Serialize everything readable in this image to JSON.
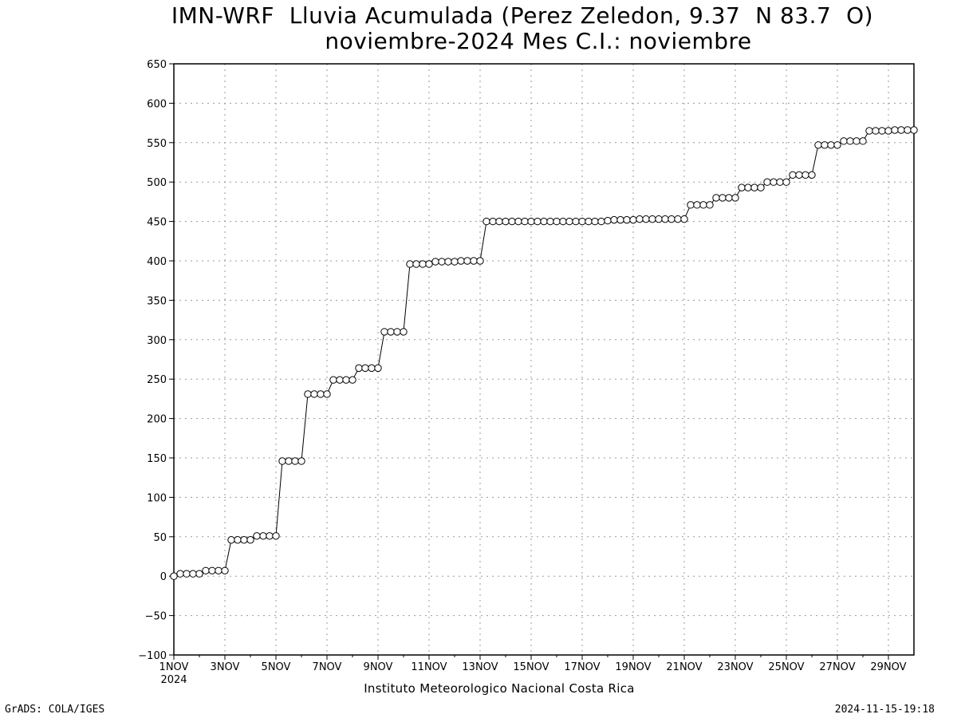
{
  "title_line1": "IMN-WRF  Lluvia Acumulada (Perez Zeledon, 9.37  N 83.7  O)",
  "title_line2": "noviembre-2024 Mes C.I.: noviembre",
  "footer": {
    "left": "GrADS: COLA/IGES",
    "right": "2024-11-15-19:18",
    "center": "Instituto Meteorologico Nacional Costa Rica"
  },
  "chart_data": {
    "type": "line",
    "title": "IMN-WRF  Lluvia Acumulada (Perez Zeledon, 9.37  N 83.7  O)",
    "subtitle": "noviembre-2024 Mes C.I.: noviembre",
    "xlabel": "",
    "ylabel": "",
    "x_unit": "days since 1NOV 2024 (0 = 1NOV 00h, step 0.25 day)",
    "xlim": [
      0,
      29
    ],
    "ylim": [
      -100,
      650
    ],
    "yticks": [
      -100,
      -50,
      0,
      50,
      100,
      150,
      200,
      250,
      300,
      350,
      400,
      450,
      500,
      550,
      600,
      650
    ],
    "xtick_labels": [
      {
        "x": 0,
        "label": "1NOV",
        "sublabel": "2024"
      },
      {
        "x": 2,
        "label": "3NOV"
      },
      {
        "x": 4,
        "label": "5NOV"
      },
      {
        "x": 6,
        "label": "7NOV"
      },
      {
        "x": 8,
        "label": "9NOV"
      },
      {
        "x": 10,
        "label": "11NOV"
      },
      {
        "x": 12,
        "label": "13NOV"
      },
      {
        "x": 14,
        "label": "15NOV"
      },
      {
        "x": 16,
        "label": "17NOV"
      },
      {
        "x": 18,
        "label": "19NOV"
      },
      {
        "x": 20,
        "label": "21NOV"
      },
      {
        "x": 22,
        "label": "23NOV"
      },
      {
        "x": 24,
        "label": "25NOV"
      },
      {
        "x": 26,
        "label": "27NOV"
      },
      {
        "x": 28,
        "label": "29NOV"
      }
    ],
    "grid": true,
    "marker": "open-circle",
    "series": [
      {
        "name": "Lluvia Acumulada",
        "step_days": 0.25,
        "values": [
          0,
          3,
          3,
          3,
          3,
          7,
          7,
          7,
          7,
          46,
          46,
          46,
          46,
          51,
          51,
          51,
          51,
          146,
          146,
          146,
          146,
          231,
          231,
          231,
          231,
          249,
          249,
          249,
          249,
          264,
          264,
          264,
          264,
          310,
          310,
          310,
          310,
          396,
          396,
          396,
          396,
          399,
          399,
          399,
          399,
          400,
          400,
          400,
          400,
          450,
          450,
          450,
          450,
          450,
          450,
          450,
          450,
          450,
          450,
          450,
          450,
          450,
          450,
          450,
          450,
          450,
          450,
          450,
          451,
          452,
          452,
          452,
          452,
          453,
          453,
          453,
          453,
          453,
          453,
          453,
          453,
          471,
          471,
          471,
          471,
          480,
          480,
          480,
          480,
          493,
          493,
          493,
          493,
          500,
          500,
          500,
          500,
          509,
          509,
          509,
          509,
          547,
          547,
          547,
          547,
          552,
          552,
          552,
          552,
          565,
          565,
          565,
          565,
          566,
          566,
          566,
          566
        ]
      }
    ]
  }
}
